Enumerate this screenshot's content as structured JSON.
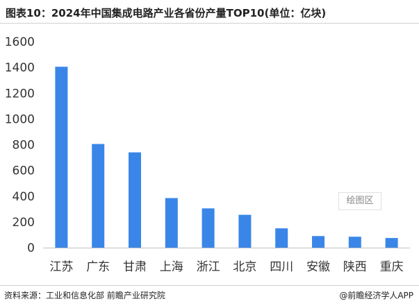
{
  "header": {
    "title": "图表10：2024年中国集成电路产业各省份产量TOP10(单位：亿块)"
  },
  "footer": {
    "source": "资料来源：工业和信息化部 前瞻产业研究院",
    "credit": "@前瞻经济学人APP"
  },
  "watermark": {
    "label": "绘图区"
  },
  "colors": {
    "bar": "#3a86e8",
    "axis": "#bfbfbf"
  },
  "chart_data": {
    "type": "bar",
    "title": "图表10：2024年中国集成电路产业各省份产量TOP10(单位：亿块)",
    "categories": [
      "江苏",
      "广东",
      "甘肃",
      "上海",
      "浙江",
      "北京",
      "四川",
      "安徽",
      "陕西",
      "重庆"
    ],
    "values": [
      1405,
      805,
      740,
      385,
      305,
      255,
      150,
      90,
      85,
      75
    ],
    "ylim": [
      0,
      1600
    ],
    "yticks": [
      "0",
      "200",
      "400",
      "600",
      "800",
      "1000",
      "1200",
      "1400",
      "1600"
    ],
    "grid": false,
    "legend": "none"
  }
}
